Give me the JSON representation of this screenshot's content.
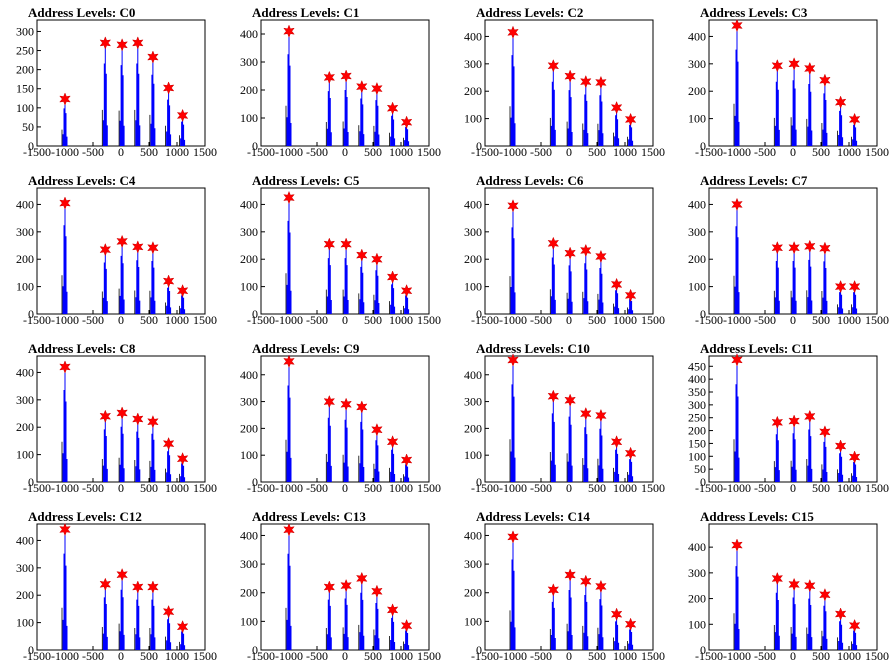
{
  "colors": {
    "histogram": "#0000ff",
    "marker": "#ff0000",
    "axes": "#000000",
    "background": "#ffffff"
  },
  "chart_data": [
    {
      "type": "bar",
      "title": "Address Levels: C0",
      "xlim": [
        -1500,
        1500
      ],
      "ylim": [
        0,
        330
      ],
      "yticks": [
        0,
        50,
        100,
        150,
        200,
        250,
        300
      ],
      "xticks": [
        -1500,
        -1000,
        -500,
        0,
        500,
        1000,
        1500
      ],
      "peaks": [
        {
          "x": -1000,
          "y": 123
        },
        {
          "x": -280,
          "y": 270
        },
        {
          "x": 20,
          "y": 265
        },
        {
          "x": 300,
          "y": 270
        },
        {
          "x": 570,
          "y": 233
        },
        {
          "x": 850,
          "y": 152
        },
        {
          "x": 1100,
          "y": 80
        }
      ]
    },
    {
      "type": "bar",
      "title": "Address Levels: C1",
      "xlim": [
        -1500,
        1500
      ],
      "ylim": [
        0,
        450
      ],
      "yticks": [
        0,
        100,
        200,
        300,
        400
      ],
      "xticks": [
        -1500,
        -1000,
        -500,
        0,
        500,
        1000,
        1500
      ],
      "peaks": [
        {
          "x": -1000,
          "y": 410
        },
        {
          "x": -280,
          "y": 245
        },
        {
          "x": 20,
          "y": 250
        },
        {
          "x": 300,
          "y": 212
        },
        {
          "x": 570,
          "y": 205
        },
        {
          "x": 850,
          "y": 135
        },
        {
          "x": 1100,
          "y": 85
        }
      ]
    },
    {
      "type": "bar",
      "title": "Address Levels: C2",
      "xlim": [
        -1500,
        1500
      ],
      "ylim": [
        0,
        460
      ],
      "yticks": [
        0,
        100,
        200,
        300,
        400
      ],
      "xticks": [
        -1500,
        -1000,
        -500,
        0,
        500,
        1000,
        1500
      ],
      "peaks": [
        {
          "x": -1000,
          "y": 415
        },
        {
          "x": -280,
          "y": 293
        },
        {
          "x": 20,
          "y": 255
        },
        {
          "x": 300,
          "y": 235
        },
        {
          "x": 570,
          "y": 232
        },
        {
          "x": 850,
          "y": 140
        },
        {
          "x": 1100,
          "y": 97
        }
      ]
    },
    {
      "type": "bar",
      "title": "Address Levels: C3",
      "xlim": [
        -1500,
        1500
      ],
      "ylim": [
        0,
        460
      ],
      "yticks": [
        0,
        100,
        200,
        300,
        400
      ],
      "xticks": [
        -1500,
        -1000,
        -500,
        0,
        500,
        1000,
        1500
      ],
      "peaks": [
        {
          "x": -1000,
          "y": 440
        },
        {
          "x": -280,
          "y": 293
        },
        {
          "x": 20,
          "y": 300
        },
        {
          "x": 300,
          "y": 283
        },
        {
          "x": 570,
          "y": 240
        },
        {
          "x": 850,
          "y": 160
        },
        {
          "x": 1100,
          "y": 97
        }
      ]
    },
    {
      "type": "bar",
      "title": "Address Levels: C4",
      "xlim": [
        -1500,
        1500
      ],
      "ylim": [
        0,
        460
      ],
      "yticks": [
        0,
        100,
        200,
        300,
        400
      ],
      "xticks": [
        -1500,
        -1000,
        -500,
        0,
        500,
        1000,
        1500
      ],
      "peaks": [
        {
          "x": -1000,
          "y": 405
        },
        {
          "x": -280,
          "y": 235
        },
        {
          "x": 20,
          "y": 265
        },
        {
          "x": 300,
          "y": 245
        },
        {
          "x": 570,
          "y": 242
        },
        {
          "x": 850,
          "y": 120
        },
        {
          "x": 1100,
          "y": 85
        }
      ]
    },
    {
      "type": "bar",
      "title": "Address Levels: C5",
      "xlim": [
        -1500,
        1500
      ],
      "ylim": [
        0,
        460
      ],
      "yticks": [
        0,
        100,
        200,
        300,
        400
      ],
      "xticks": [
        -1500,
        -1000,
        -500,
        0,
        500,
        1000,
        1500
      ],
      "peaks": [
        {
          "x": -1000,
          "y": 425
        },
        {
          "x": -280,
          "y": 255
        },
        {
          "x": 20,
          "y": 255
        },
        {
          "x": 300,
          "y": 215
        },
        {
          "x": 570,
          "y": 200
        },
        {
          "x": 850,
          "y": 135
        },
        {
          "x": 1100,
          "y": 85
        }
      ]
    },
    {
      "type": "bar",
      "title": "Address Levels: C6",
      "xlim": [
        -1500,
        1500
      ],
      "ylim": [
        0,
        460
      ],
      "yticks": [
        0,
        100,
        200,
        300,
        400
      ],
      "xticks": [
        -1500,
        -1000,
        -500,
        0,
        500,
        1000,
        1500
      ],
      "peaks": [
        {
          "x": -1000,
          "y": 395
        },
        {
          "x": -280,
          "y": 258
        },
        {
          "x": 20,
          "y": 222
        },
        {
          "x": 300,
          "y": 232
        },
        {
          "x": 570,
          "y": 210
        },
        {
          "x": 850,
          "y": 108
        },
        {
          "x": 1100,
          "y": 68
        }
      ]
    },
    {
      "type": "bar",
      "title": "Address Levels: C7",
      "xlim": [
        -1500,
        1500
      ],
      "ylim": [
        0,
        460
      ],
      "yticks": [
        0,
        100,
        200,
        300,
        400
      ],
      "xticks": [
        -1500,
        -1000,
        -500,
        0,
        500,
        1000,
        1500
      ],
      "peaks": [
        {
          "x": -1000,
          "y": 400
        },
        {
          "x": -280,
          "y": 242
        },
        {
          "x": 20,
          "y": 242
        },
        {
          "x": 300,
          "y": 247
        },
        {
          "x": 570,
          "y": 240
        },
        {
          "x": 850,
          "y": 100
        },
        {
          "x": 1100,
          "y": 100
        }
      ]
    },
    {
      "type": "bar",
      "title": "Address Levels: C8",
      "xlim": [
        -1500,
        1500
      ],
      "ylim": [
        0,
        460
      ],
      "yticks": [
        0,
        100,
        200,
        300,
        400
      ],
      "xticks": [
        -1500,
        -1000,
        -500,
        0,
        500,
        1000,
        1500
      ],
      "peaks": [
        {
          "x": -1000,
          "y": 420
        },
        {
          "x": -280,
          "y": 240
        },
        {
          "x": 20,
          "y": 252
        },
        {
          "x": 300,
          "y": 230
        },
        {
          "x": 570,
          "y": 220
        },
        {
          "x": 850,
          "y": 140
        },
        {
          "x": 1100,
          "y": 85
        }
      ]
    },
    {
      "type": "bar",
      "title": "Address Levels: C9",
      "xlim": [
        -1500,
        1500
      ],
      "ylim": [
        0,
        470
      ],
      "yticks": [
        0,
        100,
        200,
        300,
        400
      ],
      "xticks": [
        -1500,
        -1000,
        -500,
        0,
        500,
        1000,
        1500
      ],
      "peaks": [
        {
          "x": -1000,
          "y": 450
        },
        {
          "x": -280,
          "y": 300
        },
        {
          "x": 20,
          "y": 290
        },
        {
          "x": 300,
          "y": 280
        },
        {
          "x": 570,
          "y": 195
        },
        {
          "x": 850,
          "y": 150
        },
        {
          "x": 1100,
          "y": 82
        }
      ]
    },
    {
      "type": "bar",
      "title": "Address Levels: C10",
      "xlim": [
        -1500,
        1500
      ],
      "ylim": [
        0,
        470
      ],
      "yticks": [
        0,
        100,
        200,
        300,
        400
      ],
      "xticks": [
        -1500,
        -1000,
        -500,
        0,
        500,
        1000,
        1500
      ],
      "peaks": [
        {
          "x": -1000,
          "y": 455
        },
        {
          "x": -280,
          "y": 320
        },
        {
          "x": 20,
          "y": 305
        },
        {
          "x": 300,
          "y": 255
        },
        {
          "x": 570,
          "y": 248
        },
        {
          "x": 850,
          "y": 150
        },
        {
          "x": 1100,
          "y": 107
        }
      ]
    },
    {
      "type": "bar",
      "title": "Address Levels: C11",
      "xlim": [
        -1500,
        1500
      ],
      "ylim": [
        0,
        490
      ],
      "yticks": [
        0,
        50,
        100,
        150,
        200,
        250,
        300,
        350,
        400,
        450
      ],
      "xticks": [
        -1500,
        -1000,
        -500,
        0,
        500,
        1000,
        1500
      ],
      "peaks": [
        {
          "x": -1000,
          "y": 475
        },
        {
          "x": -280,
          "y": 232
        },
        {
          "x": 20,
          "y": 237
        },
        {
          "x": 300,
          "y": 255
        },
        {
          "x": 570,
          "y": 195
        },
        {
          "x": 850,
          "y": 140
        },
        {
          "x": 1100,
          "y": 97
        }
      ]
    },
    {
      "type": "bar",
      "title": "Address Levels: C12",
      "xlim": [
        -1500,
        1500
      ],
      "ylim": [
        0,
        460
      ],
      "yticks": [
        0,
        100,
        200,
        300,
        400
      ],
      "xticks": [
        -1500,
        -1000,
        -500,
        0,
        500,
        1000,
        1500
      ],
      "peaks": [
        {
          "x": -1000,
          "y": 440
        },
        {
          "x": -280,
          "y": 240
        },
        {
          "x": 20,
          "y": 275
        },
        {
          "x": 300,
          "y": 230
        },
        {
          "x": 570,
          "y": 230
        },
        {
          "x": 850,
          "y": 140
        },
        {
          "x": 1100,
          "y": 85
        }
      ]
    },
    {
      "type": "bar",
      "title": "Address Levels: C13",
      "xlim": [
        -1500,
        1500
      ],
      "ylim": [
        0,
        440
      ],
      "yticks": [
        0,
        100,
        200,
        300,
        400
      ],
      "xticks": [
        -1500,
        -1000,
        -500,
        0,
        500,
        1000,
        1500
      ],
      "peaks": [
        {
          "x": -1000,
          "y": 420
        },
        {
          "x": -280,
          "y": 220
        },
        {
          "x": 20,
          "y": 225
        },
        {
          "x": 300,
          "y": 250
        },
        {
          "x": 570,
          "y": 205
        },
        {
          "x": 850,
          "y": 140
        },
        {
          "x": 1100,
          "y": 85
        }
      ]
    },
    {
      "type": "bar",
      "title": "Address Levels: C14",
      "xlim": [
        -1500,
        1500
      ],
      "ylim": [
        0,
        440
      ],
      "yticks": [
        0,
        100,
        200,
        300,
        400
      ],
      "xticks": [
        -1500,
        -1000,
        -500,
        0,
        500,
        1000,
        1500
      ],
      "peaks": [
        {
          "x": -1000,
          "y": 395
        },
        {
          "x": -280,
          "y": 210
        },
        {
          "x": 20,
          "y": 262
        },
        {
          "x": 300,
          "y": 240
        },
        {
          "x": 570,
          "y": 222
        },
        {
          "x": 850,
          "y": 125
        },
        {
          "x": 1100,
          "y": 90
        }
      ]
    },
    {
      "type": "bar",
      "title": "Address Levels: C15",
      "xlim": [
        -1500,
        1500
      ],
      "ylim": [
        0,
        490
      ],
      "yticks": [
        0,
        100,
        200,
        300,
        400
      ],
      "xticks": [
        -1500,
        -1000,
        -500,
        0,
        500,
        1000,
        1500
      ],
      "peaks": [
        {
          "x": -1000,
          "y": 408
        },
        {
          "x": -280,
          "y": 278
        },
        {
          "x": 20,
          "y": 255
        },
        {
          "x": 300,
          "y": 250
        },
        {
          "x": 570,
          "y": 215
        },
        {
          "x": 850,
          "y": 140
        },
        {
          "x": 1100,
          "y": 95
        }
      ]
    }
  ]
}
